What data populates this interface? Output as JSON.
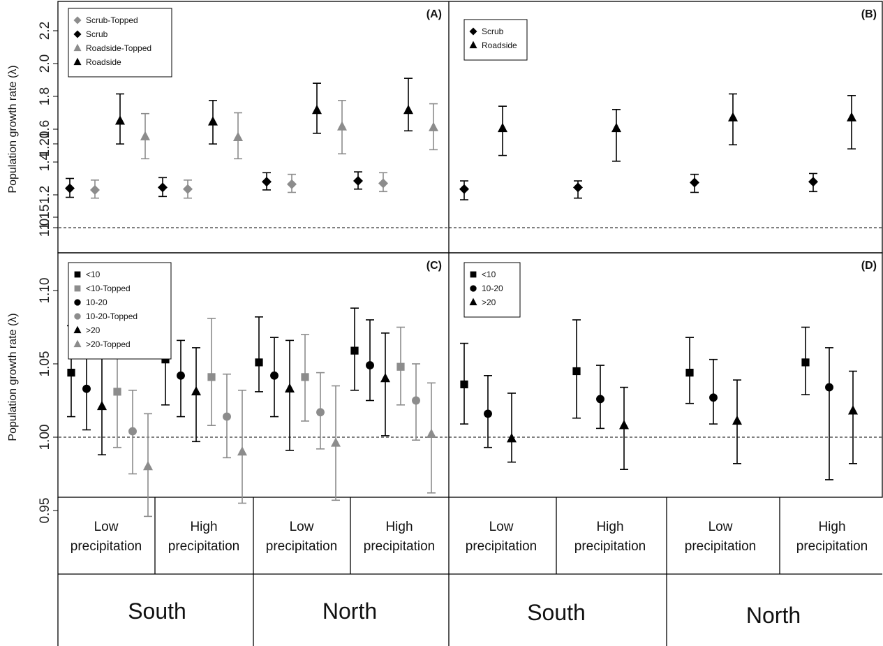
{
  "colors": {
    "dark": "#000000",
    "light": "#8c8c8c",
    "frame": "#000000"
  },
  "chart_data": [
    {
      "panel": "(A)",
      "type": "scatter",
      "error_bars": true,
      "ylabel": "Population growth rate (λ)",
      "ylim": [
        0.85,
        2.3
      ],
      "yticks": [
        1.0,
        1.2,
        1.4,
        1.6,
        1.8,
        2.0,
        2.2
      ],
      "reference_line": 1.0,
      "legend_position": "top-left",
      "groups": [
        "South Low precipitation",
        "South High precipitation",
        "North Low precipitation",
        "North High precipitation"
      ],
      "series": [
        {
          "name": "Scrub",
          "shape": "diamond",
          "color": "dark",
          "offset": 0,
          "values": [
            1.24,
            1.245,
            1.28,
            1.285
          ],
          "lower": [
            1.185,
            1.19,
            1.23,
            1.235
          ],
          "upper": [
            1.3,
            1.305,
            1.335,
            1.34
          ]
        },
        {
          "name": "Scrub-Topped",
          "shape": "diamond",
          "color": "light",
          "offset": 1,
          "values": [
            1.23,
            1.235,
            1.265,
            1.27
          ],
          "lower": [
            1.18,
            1.18,
            1.215,
            1.22
          ],
          "upper": [
            1.29,
            1.29,
            1.325,
            1.335
          ]
        },
        {
          "name": "Roadside",
          "shape": "triangle",
          "color": "dark",
          "offset": 2,
          "values": [
            1.65,
            1.645,
            1.715,
            1.715
          ],
          "lower": [
            1.51,
            1.51,
            1.575,
            1.59
          ],
          "upper": [
            1.815,
            1.775,
            1.88,
            1.91
          ]
        },
        {
          "name": "Roadside-Topped",
          "shape": "triangle",
          "color": "light",
          "offset": 3,
          "values": [
            1.555,
            1.55,
            1.615,
            1.61
          ],
          "lower": [
            1.42,
            1.42,
            1.45,
            1.475
          ],
          "upper": [
            1.695,
            1.7,
            1.775,
            1.755
          ]
        }
      ],
      "legend": [
        {
          "name": "Scrub-Topped",
          "shape": "diamond",
          "color": "light"
        },
        {
          "name": "Scrub",
          "shape": "diamond",
          "color": "dark"
        },
        {
          "name": "Roadside-Topped",
          "shape": "triangle",
          "color": "light"
        },
        {
          "name": "Roadside",
          "shape": "triangle",
          "color": "dark"
        }
      ]
    },
    {
      "panel": "(B)",
      "type": "scatter",
      "error_bars": true,
      "ylim": [
        0.85,
        2.3
      ],
      "reference_line": 1.0,
      "legend_position": "top-left",
      "groups": [
        "South Low precipitation",
        "South High precipitation",
        "North Low precipitation",
        "North High precipitation"
      ],
      "series": [
        {
          "name": "Scrub",
          "shape": "diamond",
          "color": "dark",
          "offset": 0,
          "values": [
            1.235,
            1.245,
            1.275,
            1.28
          ],
          "lower": [
            1.17,
            1.18,
            1.215,
            1.22
          ],
          "upper": [
            1.285,
            1.285,
            1.325,
            1.33
          ]
        },
        {
          "name": "Roadside",
          "shape": "triangle",
          "color": "dark",
          "offset": 1,
          "values": [
            1.605,
            1.605,
            1.67,
            1.67
          ],
          "lower": [
            1.44,
            1.405,
            1.505,
            1.48
          ],
          "upper": [
            1.74,
            1.72,
            1.815,
            1.805
          ]
        }
      ],
      "legend": [
        {
          "name": "Scrub",
          "shape": "diamond",
          "color": "dark"
        },
        {
          "name": "Roadside",
          "shape": "triangle",
          "color": "dark"
        }
      ]
    },
    {
      "panel": "(C)",
      "type": "scatter",
      "error_bars": true,
      "ylabel": "Population growth rate (λ)",
      "ylim": [
        0.925,
        1.205
      ],
      "yticks": [
        0.95,
        1.0,
        1.05,
        1.1,
        1.15,
        1.2
      ],
      "reference_line": 1.0,
      "legend_position": "top-left",
      "groups": [
        "South Low precipitation",
        "South High precipitation",
        "North Low precipitation",
        "North High precipitation"
      ],
      "series": [
        {
          "name": "<10",
          "shape": "square",
          "color": "dark",
          "offset": 0,
          "values": [
            1.044,
            1.053,
            1.051,
            1.059
          ],
          "lower": [
            1.014,
            1.022,
            1.031,
            1.032
          ],
          "upper": [
            1.076,
            1.08,
            1.082,
            1.088
          ]
        },
        {
          "name": "10-20",
          "shape": "circle",
          "color": "dark",
          "offset": 1,
          "values": [
            1.033,
            1.042,
            1.042,
            1.049
          ],
          "lower": [
            1.005,
            1.014,
            1.014,
            1.025
          ],
          "upper": [
            1.061,
            1.066,
            1.068,
            1.08
          ]
        },
        {
          "name": ">20",
          "shape": "triangle",
          "color": "dark",
          "offset": 2,
          "values": [
            1.021,
            1.031,
            1.033,
            1.04
          ],
          "lower": [
            0.988,
            0.997,
            0.991,
            1.001
          ],
          "upper": [
            1.056,
            1.061,
            1.066,
            1.071
          ]
        },
        {
          "name": "<10-Topped",
          "shape": "square",
          "color": "light",
          "offset": 3,
          "values": [
            1.031,
            1.041,
            1.041,
            1.048
          ],
          "lower": [
            0.993,
            1.008,
            1.011,
            1.022
          ],
          "upper": [
            1.074,
            1.081,
            1.07,
            1.075
          ]
        },
        {
          "name": "10-20-Topped",
          "shape": "circle",
          "color": "light",
          "offset": 4,
          "values": [
            1.004,
            1.014,
            1.017,
            1.025
          ],
          "lower": [
            0.975,
            0.986,
            0.992,
            0.998
          ],
          "upper": [
            1.032,
            1.043,
            1.044,
            1.05
          ]
        },
        {
          "name": ">20-Topped",
          "shape": "triangle",
          "color": "light",
          "offset": 5,
          "values": [
            0.98,
            0.99,
            0.996,
            1.002
          ],
          "lower": [
            0.946,
            0.955,
            0.957,
            0.962
          ],
          "upper": [
            1.016,
            1.032,
            1.035,
            1.037
          ]
        }
      ],
      "legend": [
        {
          "name": "<10",
          "shape": "square",
          "color": "dark"
        },
        {
          "name": "<10-Topped",
          "shape": "square",
          "color": "light"
        },
        {
          "name": "10-20",
          "shape": "circle",
          "color": "dark"
        },
        {
          "name": "10-20-Topped",
          "shape": "circle",
          "color": "light"
        },
        {
          "name": ">20",
          "shape": "triangle",
          "color": "dark"
        },
        {
          "name": ">20-Topped",
          "shape": "triangle",
          "color": "light"
        }
      ]
    },
    {
      "panel": "(D)",
      "type": "scatter",
      "error_bars": true,
      "ylim": [
        0.925,
        1.205
      ],
      "reference_line": 1.0,
      "legend_position": "top-left",
      "groups": [
        "South Low precipitation",
        "South High precipitation",
        "North Low precipitation",
        "North High precipitation"
      ],
      "series": [
        {
          "name": "<10",
          "shape": "square",
          "color": "dark",
          "offset": 0,
          "values": [
            1.036,
            1.045,
            1.044,
            1.051
          ],
          "lower": [
            1.009,
            1.013,
            1.023,
            1.029
          ],
          "upper": [
            1.064,
            1.08,
            1.068,
            1.075
          ]
        },
        {
          "name": "10-20",
          "shape": "circle",
          "color": "dark",
          "offset": 1,
          "values": [
            1.016,
            1.026,
            1.027,
            1.034
          ],
          "lower": [
            0.993,
            1.006,
            1.009,
            0.971
          ],
          "upper": [
            1.042,
            1.049,
            1.053,
            1.061
          ]
        },
        {
          "name": ">20",
          "shape": "triangle",
          "color": "dark",
          "offset": 2,
          "values": [
            0.999,
            1.008,
            1.011,
            1.018
          ],
          "lower": [
            0.983,
            0.978,
            0.982,
            0.982
          ],
          "upper": [
            1.03,
            1.034,
            1.039,
            1.045
          ]
        }
      ],
      "legend": [
        {
          "name": "<10",
          "shape": "square",
          "color": "dark"
        },
        {
          "name": "10-20",
          "shape": "circle",
          "color": "dark"
        },
        {
          "name": ">20",
          "shape": "triangle",
          "color": "dark"
        }
      ]
    }
  ],
  "categories": {
    "left": [
      {
        "line1": "Low",
        "line2": "precipitation"
      },
      {
        "line1": "High",
        "line2": "precipitation"
      },
      {
        "line1": "Low",
        "line2": "precipitation"
      },
      {
        "line1": "High",
        "line2": "precipitation"
      }
    ],
    "right": [
      {
        "line1": "Low",
        "line2": "precipitation"
      },
      {
        "line1": "High",
        "line2": "precipitation"
      },
      {
        "line1": "Low",
        "line2": "precipitation"
      },
      {
        "line1": "High",
        "line2": "precipitation"
      }
    ]
  },
  "regions": {
    "left": [
      "South",
      "North"
    ],
    "right": [
      "South",
      "North"
    ]
  }
}
